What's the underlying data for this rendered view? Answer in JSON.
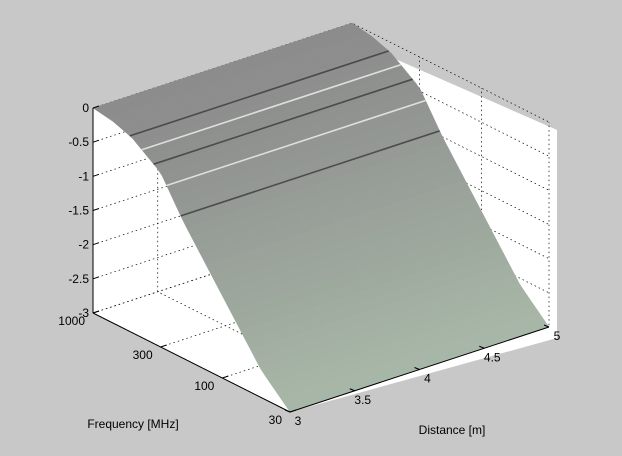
{
  "chart_data": {
    "type": "surface",
    "title": "",
    "xlabel": "Distance [m]",
    "ylabel": "Frequency [MHz]",
    "zlabel": "",
    "x_ticks": [
      "3",
      "3.5",
      "4",
      "4.5",
      "5"
    ],
    "y_ticks": [
      "30",
      "100",
      "300",
      "1000"
    ],
    "z_ticks": [
      "0",
      "-0.5",
      "-1",
      "-1.5",
      "-2",
      "-2.5",
      "-3"
    ],
    "xlim": [
      3,
      5
    ],
    "ylim": [
      30,
      1000
    ],
    "zlim": [
      -3,
      0
    ],
    "y_scale": "log",
    "grid": true,
    "surface_profile": {
      "frequency_mhz": [
        30,
        50,
        100,
        200,
        300,
        500,
        700,
        1000
      ],
      "z_value": [
        -3.0,
        -2.6,
        -1.8,
        -1.0,
        -0.45,
        -0.15,
        -0.05,
        0.0
      ]
    },
    "colors": {
      "background": "#c8c8c8",
      "axes_face": "#ffffff",
      "surface_low": "#a8b8a8",
      "surface_high": "#8c8c8c"
    }
  }
}
